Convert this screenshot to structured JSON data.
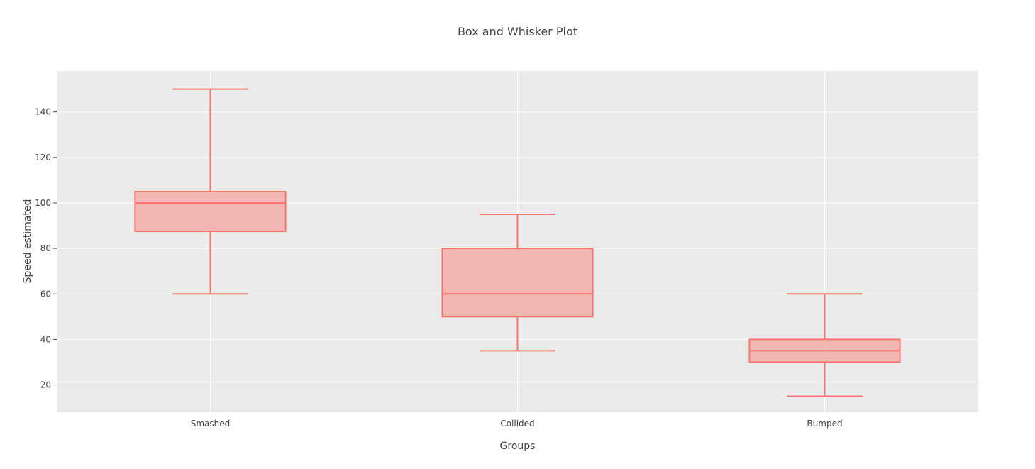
{
  "chart_data": {
    "type": "box",
    "title": "Box and Whisker Plot",
    "xlabel": "Groups",
    "ylabel": "Speed estimated",
    "ylim": [
      8,
      158
    ],
    "yticks": [
      20,
      40,
      60,
      80,
      100,
      120,
      140
    ],
    "grid": true,
    "legend": "none",
    "colors": {
      "plot_background": "#ebebeb",
      "box_line": "#f8766d",
      "box_fill": "#f4b1ad",
      "grid": "#ffffff",
      "text": "#444444"
    },
    "categories": [
      "Smashed",
      "Collided",
      "Bumped"
    ],
    "boxes": [
      {
        "category": "Smashed",
        "min": 60,
        "q1": 87.5,
        "median": 100,
        "q3": 105,
        "max": 150
      },
      {
        "category": "Collided",
        "min": 35,
        "q1": 50,
        "median": 60,
        "q3": 80,
        "max": 95
      },
      {
        "category": "Bumped",
        "min": 15,
        "q1": 30,
        "median": 35,
        "q3": 40,
        "max": 60
      }
    ]
  }
}
